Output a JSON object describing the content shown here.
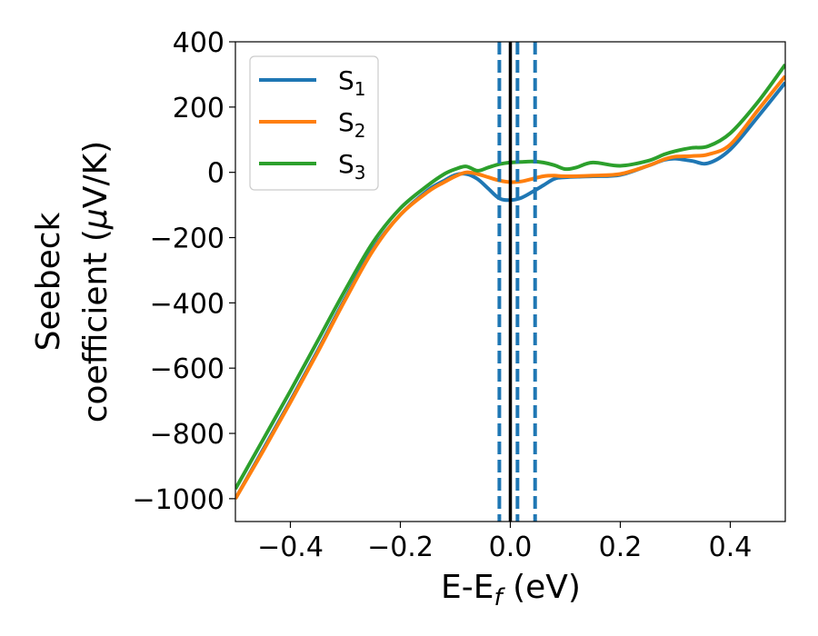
{
  "chart_data": {
    "type": "line",
    "xlabel": "E-E",
    "xlabel_sub": "f",
    "xlabel_unit": " (eV)",
    "ylabel_line1": "Seebeck",
    "ylabel_line2": "coefficient  (",
    "ylabel_mu": "μ",
    "ylabel_unit": "V/K)",
    "xlim": [
      -0.5,
      0.5
    ],
    "ylim": [
      -1070,
      400
    ],
    "xticks": [
      -0.4,
      -0.2,
      0.0,
      0.2,
      0.4
    ],
    "xtick_labels": [
      "−0.4",
      "−0.2",
      "0.0",
      "0.2",
      "0.4"
    ],
    "yticks": [
      -1000,
      -800,
      -600,
      -400,
      -200,
      0,
      200,
      400
    ],
    "ytick_labels": [
      "−1000",
      "−800",
      "−600",
      "−400",
      "−200",
      "0",
      "200",
      "400"
    ],
    "grid": false,
    "legend_position": "top-left",
    "vertical_lines": [
      {
        "x": -0.02,
        "style": "dashed",
        "color": "#1f77b4"
      },
      {
        "x": 0.0,
        "style": "solid",
        "color": "#000000"
      },
      {
        "x": 0.013,
        "style": "dashed",
        "color": "#1f77b4"
      },
      {
        "x": 0.045,
        "style": "dashed",
        "color": "#1f77b4"
      }
    ],
    "series": [
      {
        "name": "S",
        "sub": "1",
        "color": "#1f77b4",
        "x": [
          -0.5,
          -0.45,
          -0.4,
          -0.35,
          -0.3,
          -0.25,
          -0.2,
          -0.15,
          -0.12,
          -0.1,
          -0.08,
          -0.06,
          -0.04,
          -0.02,
          0.0,
          0.02,
          0.04,
          0.06,
          0.08,
          0.1,
          0.15,
          0.2,
          0.25,
          0.28,
          0.3,
          0.33,
          0.36,
          0.4,
          0.45,
          0.5
        ],
        "y": [
          -1000,
          -850,
          -700,
          -545,
          -385,
          -235,
          -130,
          -55,
          -25,
          -8,
          -5,
          -20,
          -50,
          -80,
          -85,
          -78,
          -60,
          -40,
          -20,
          -15,
          -12,
          -8,
          20,
          38,
          42,
          35,
          28,
          70,
          170,
          275
        ]
      },
      {
        "name": "S",
        "sub": "2",
        "color": "#ff7f0e",
        "x": [
          -0.5,
          -0.45,
          -0.4,
          -0.35,
          -0.3,
          -0.25,
          -0.2,
          -0.15,
          -0.12,
          -0.1,
          -0.08,
          -0.06,
          -0.04,
          -0.02,
          0.0,
          0.02,
          0.04,
          0.06,
          0.08,
          0.1,
          0.15,
          0.2,
          0.25,
          0.28,
          0.3,
          0.33,
          0.36,
          0.4,
          0.45,
          0.5
        ],
        "y": [
          -1000,
          -855,
          -705,
          -550,
          -390,
          -240,
          -130,
          -60,
          -30,
          -12,
          0,
          -5,
          -15,
          -25,
          -30,
          -28,
          -20,
          -12,
          -10,
          -12,
          -10,
          -5,
          20,
          40,
          48,
          50,
          55,
          85,
          190,
          295
        ]
      },
      {
        "name": "S",
        "sub": "3",
        "color": "#2ca02c",
        "x": [
          -0.5,
          -0.45,
          -0.4,
          -0.35,
          -0.3,
          -0.25,
          -0.2,
          -0.15,
          -0.12,
          -0.1,
          -0.08,
          -0.06,
          -0.04,
          -0.02,
          0.0,
          0.02,
          0.04,
          0.06,
          0.08,
          0.1,
          0.12,
          0.15,
          0.2,
          0.25,
          0.28,
          0.3,
          0.33,
          0.36,
          0.4,
          0.45,
          0.5
        ],
        "y": [
          -970,
          -820,
          -670,
          -515,
          -360,
          -215,
          -110,
          -40,
          -5,
          10,
          18,
          5,
          15,
          25,
          30,
          32,
          33,
          30,
          22,
          10,
          15,
          30,
          20,
          35,
          55,
          65,
          75,
          80,
          120,
          215,
          330
        ]
      }
    ]
  }
}
